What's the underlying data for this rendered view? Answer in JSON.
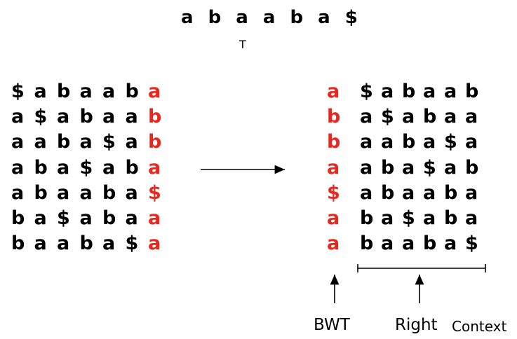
{
  "text_T": "a b a a b a $",
  "t_label": "T",
  "left_rows": [
    {
      "prefix": [
        "$",
        "a",
        "b",
        "a",
        "a",
        "b"
      ],
      "last": "a"
    },
    {
      "prefix": [
        "a",
        "$",
        "a",
        "b",
        "a",
        "a"
      ],
      "last": "b"
    },
    {
      "prefix": [
        "a",
        "a",
        "b",
        "a",
        "$",
        "a"
      ],
      "last": "b"
    },
    {
      "prefix": [
        "a",
        "b",
        "a",
        "$",
        "a",
        "b"
      ],
      "last": "a"
    },
    {
      "prefix": [
        "a",
        "b",
        "a",
        "a",
        "b",
        "a"
      ],
      "last": "$"
    },
    {
      "prefix": [
        "b",
        "a",
        "$",
        "a",
        "b",
        "a"
      ],
      "last": "a"
    },
    {
      "prefix": [
        "b",
        "a",
        "a",
        "b",
        "a",
        "$"
      ],
      "last": "a"
    }
  ],
  "right_rows": [
    {
      "first": "a",
      "rest": [
        "$",
        "a",
        "b",
        "a",
        "a",
        "b"
      ]
    },
    {
      "first": "b",
      "rest": [
        "a",
        "$",
        "a",
        "b",
        "a",
        "a"
      ]
    },
    {
      "first": "b",
      "rest": [
        "a",
        "a",
        "b",
        "a",
        "$",
        "a"
      ]
    },
    {
      "first": "a",
      "rest": [
        "a",
        "b",
        "a",
        "$",
        "a",
        "b"
      ]
    },
    {
      "first": "$",
      "rest": [
        "a",
        "b",
        "a",
        "a",
        "b",
        "a"
      ]
    },
    {
      "first": "a",
      "rest": [
        "b",
        "a",
        "$",
        "a",
        "b",
        "a"
      ]
    },
    {
      "first": "a",
      "rest": [
        "b",
        "a",
        "a",
        "b",
        "a",
        "$"
      ]
    }
  ],
  "labels": {
    "bwt": "BWT",
    "right": "Right",
    "context": "Context"
  },
  "colors": {
    "highlight": "#e8281e",
    "text": "#000000"
  }
}
